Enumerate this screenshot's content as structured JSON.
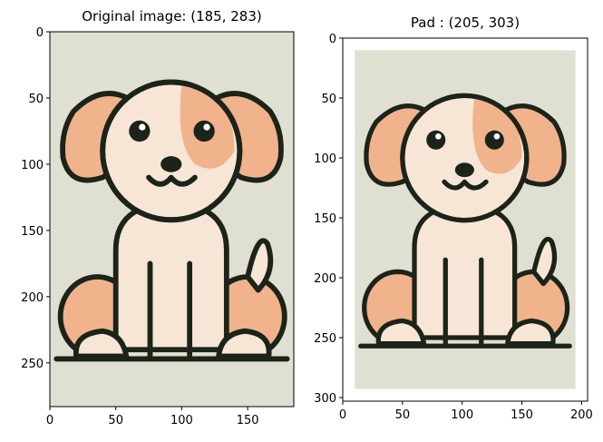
{
  "chart_data": [
    {
      "type": "image",
      "title": "Original image: (185, 283)",
      "xlim": [
        0,
        185
      ],
      "ylim": [
        283,
        0
      ],
      "xticks": [
        0,
        50,
        100,
        150
      ],
      "yticks": [
        0,
        50,
        100,
        150,
        200,
        250
      ]
    },
    {
      "type": "image",
      "title": "Pad : (205, 303)",
      "xlim": [
        0,
        205
      ],
      "ylim": [
        303,
        0
      ],
      "xticks": [
        0,
        50,
        100,
        150,
        200
      ],
      "yticks": [
        0,
        50,
        100,
        150,
        200,
        250,
        300
      ]
    }
  ]
}
